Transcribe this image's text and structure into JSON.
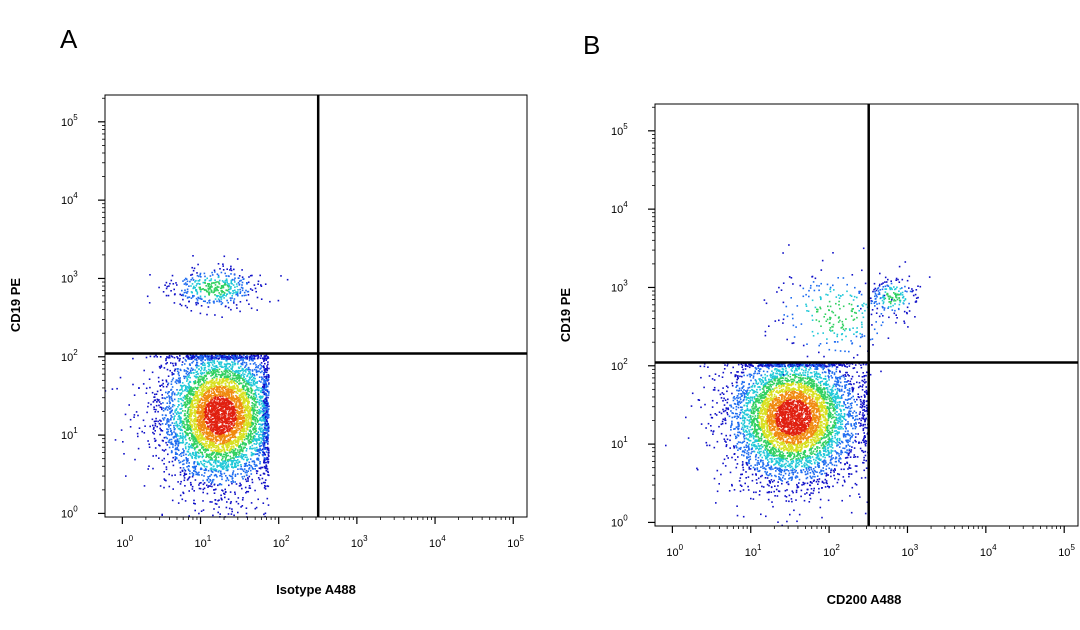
{
  "chart_data": [
    {
      "type": "scatter",
      "panel_label": "A",
      "xlabel": "Isotype A488",
      "ylabel": "CD19 PE",
      "x_scale": "log",
      "y_scale": "log",
      "xlim": [
        0.6,
        150000
      ],
      "ylim": [
        0.9,
        220000
      ],
      "x_ticks": [
        1,
        10,
        100,
        1000,
        10000,
        100000
      ],
      "y_ticks": [
        1,
        10,
        100,
        1000,
        10000,
        100000
      ],
      "tick_base": "10",
      "tick_exponents": [
        "0",
        "1",
        "2",
        "3",
        "4",
        "5"
      ],
      "gate": {
        "x": 320,
        "y": 110
      },
      "grid": false,
      "legend": "none",
      "color_scale": [
        "#1010c8",
        "#1e6cf0",
        "#20c8d8",
        "#30d060",
        "#d8e020",
        "#f08a10",
        "#e02010"
      ],
      "populations": [
        {
          "center": [
            18,
            18
          ],
          "spread_decades": [
            0.38,
            0.45
          ],
          "count": 5200,
          "clip_x_max": 75,
          "clip_y_max": 105
        },
        {
          "center": [
            15,
            750
          ],
          "spread_decades": [
            0.28,
            0.13
          ],
          "count": 420
        }
      ]
    },
    {
      "type": "scatter",
      "panel_label": "B",
      "xlabel": "CD200 A488",
      "ylabel": "CD19 PE",
      "x_scale": "log",
      "y_scale": "log",
      "xlim": [
        0.6,
        150000
      ],
      "ylim": [
        0.9,
        220000
      ],
      "x_ticks": [
        1,
        10,
        100,
        1000,
        10000,
        100000
      ],
      "y_ticks": [
        1,
        10,
        100,
        1000,
        10000,
        100000
      ],
      "tick_base": "10",
      "tick_exponents": [
        "0",
        "1",
        "2",
        "3",
        "4",
        "5"
      ],
      "gate": {
        "x": 320,
        "y": 110
      },
      "grid": false,
      "legend": "none",
      "color_scale": [
        "#1010c8",
        "#1e6cf0",
        "#20c8d8",
        "#30d060",
        "#d8e020",
        "#f08a10",
        "#e02010"
      ],
      "populations": [
        {
          "center": [
            35,
            22
          ],
          "spread_decades": [
            0.42,
            0.42
          ],
          "count": 5200,
          "clip_x_max": 320,
          "clip_y_max": 110
        },
        {
          "center": [
            650,
            750
          ],
          "spread_decades": [
            0.15,
            0.12
          ],
          "count": 180
        },
        {
          "center": [
            120,
            450
          ],
          "spread_decades": [
            0.4,
            0.3
          ],
          "count": 260
        }
      ]
    }
  ]
}
